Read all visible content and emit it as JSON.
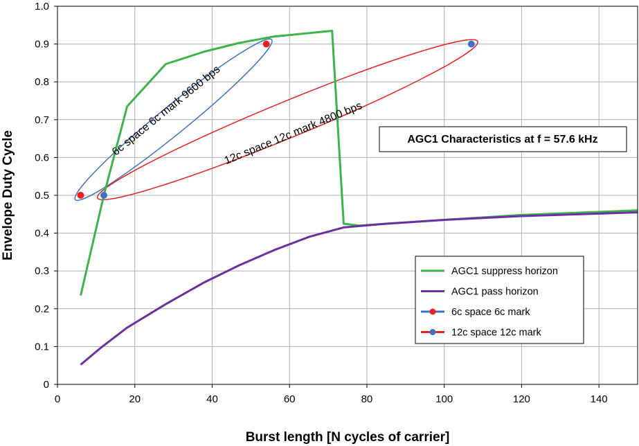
{
  "chart_data": {
    "type": "line",
    "title": "AGC1 Characteristics at f = 57.6 kHz",
    "xlabel": "Burst length [N cycles of carrier]",
    "ylabel": "Envelope Duty Cycle",
    "xlim": [
      0,
      150
    ],
    "ylim": [
      0,
      1.0
    ],
    "xticks": [
      0,
      20,
      40,
      60,
      80,
      100,
      120,
      140
    ],
    "yticks": [
      0,
      0.1,
      0.2,
      0.3,
      0.4,
      0.5,
      0.6,
      0.7,
      0.8,
      0.9,
      1.0
    ],
    "ytick_labels": [
      "0",
      "0.1",
      "0.2",
      "0.3",
      "0.4",
      "0.5",
      "0.6",
      "0.7",
      "0.8",
      "0.9",
      "1.0"
    ],
    "grid": true,
    "legend_position": "lower-right",
    "series": [
      {
        "name": "AGC1 suppress horizon",
        "color": "#3cb44b",
        "marker": "none",
        "x": [
          6,
          12,
          18,
          28,
          38,
          47,
          56,
          71,
          74,
          78,
          100,
          120,
          150
        ],
        "y": [
          0.235,
          0.5,
          0.735,
          0.847,
          0.88,
          0.903,
          0.92,
          0.935,
          0.425,
          0.42,
          0.435,
          0.448,
          0.46
        ]
      },
      {
        "name": "AGC1 pass horizon",
        "color": "#6a2fa0",
        "marker": "none",
        "x": [
          6,
          11,
          18,
          28,
          38,
          47,
          56,
          65,
          74,
          85,
          100,
          120,
          150
        ],
        "y": [
          0.052,
          0.095,
          0.15,
          0.212,
          0.27,
          0.315,
          0.355,
          0.39,
          0.415,
          0.425,
          0.435,
          0.445,
          0.455
        ]
      },
      {
        "name": "6c space 6c mark",
        "color": "#3a72c4",
        "marker": "#e82020",
        "x": [
          6,
          54
        ],
        "y": [
          0.5,
          0.9
        ]
      },
      {
        "name": "12c space 12c mark",
        "color": "#e82020",
        "marker": "#3a72c4",
        "x": [
          12,
          107
        ],
        "y": [
          0.5,
          0.9
        ]
      }
    ],
    "annotations": [
      {
        "text": "6c space 6c mark 9600 bps"
      },
      {
        "text": "12c space 12c mark 4800 bps"
      }
    ]
  }
}
